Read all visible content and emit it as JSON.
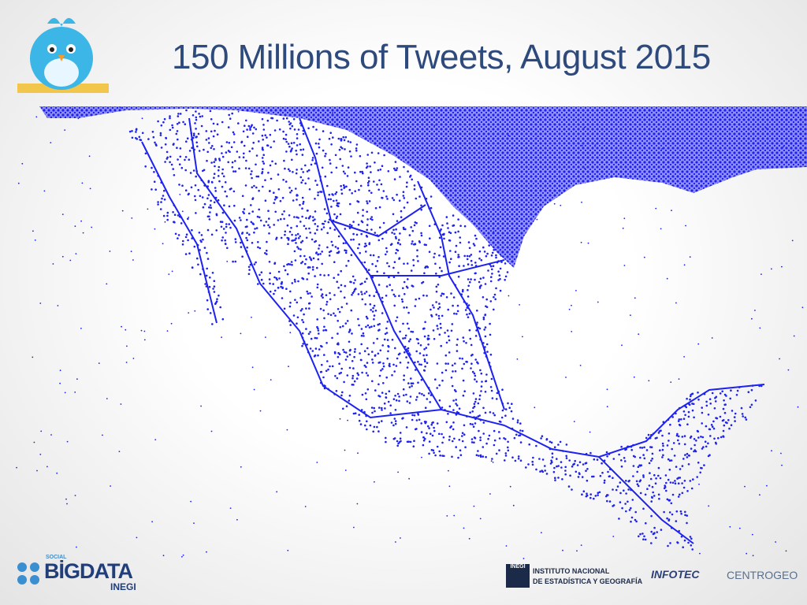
{
  "header": {
    "title": "150 Millions of Tweets, August 2015"
  },
  "footer": {
    "bigdata_logo": {
      "small": "SOCIAL",
      "main": "BİGDATA",
      "sub": "INEGI"
    },
    "inegi_logo": {
      "mark": "INEGI",
      "line1": "INSTITUTO NACIONAL",
      "line2": "DE ESTADÍSTICA Y GEOGRAFÍA"
    },
    "infotec_logo": "INFOTEC",
    "centrogeo_logo": "CENTROGEO"
  }
}
